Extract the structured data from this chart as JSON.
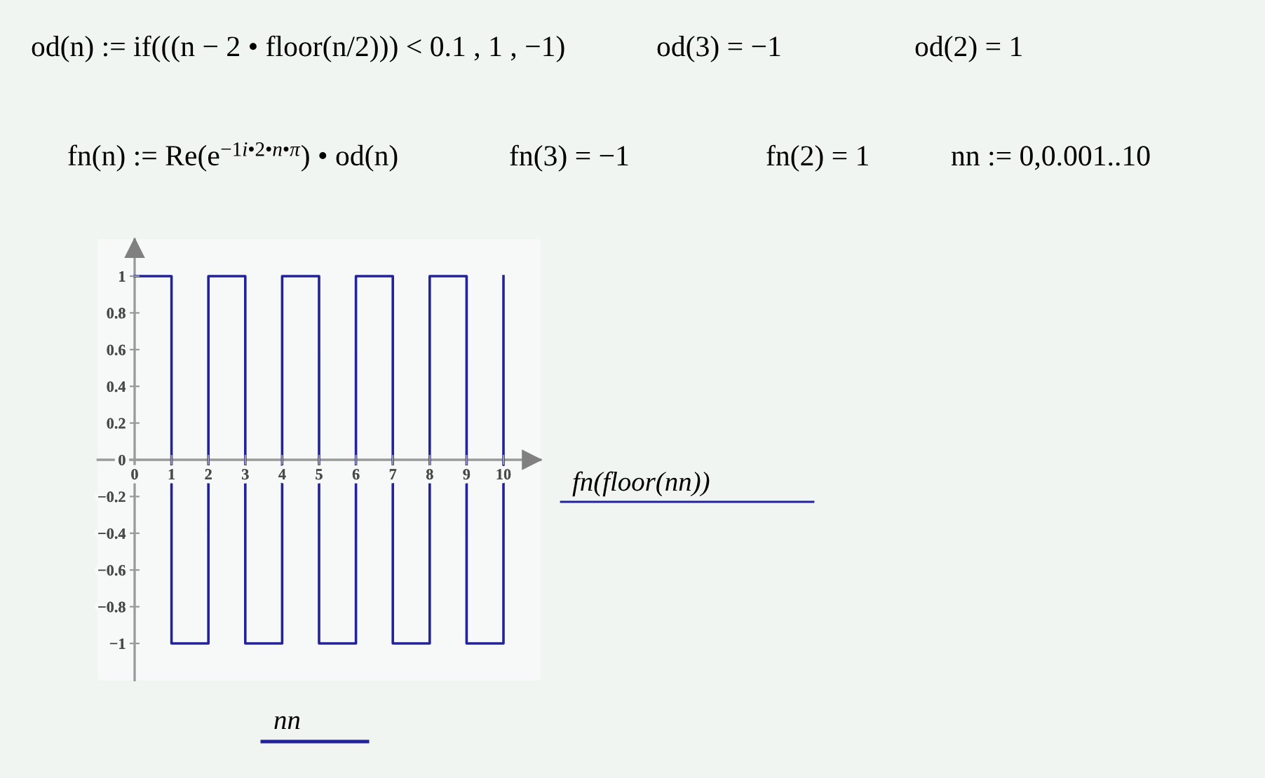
{
  "chart_data": {
    "type": "step",
    "x": [
      0,
      1,
      2,
      3,
      4,
      5,
      6,
      7,
      8,
      9,
      10
    ],
    "series": [
      {
        "color": "#22229a",
        "values": [
          1,
          -1,
          1,
          -1,
          1,
          -1,
          1,
          -1,
          1,
          -1,
          1
        ]
      }
    ],
    "xlim": [
      -1,
      11
    ],
    "ylim": [
      -1.2,
      1.2
    ],
    "xticks": [
      0,
      1,
      2,
      3,
      4,
      5,
      6,
      7,
      8,
      9,
      10
    ],
    "yticks": [
      {
        "value": -1,
        "label": "−1"
      },
      {
        "value": -0.8,
        "label": "−0.8"
      },
      {
        "value": -0.6,
        "label": "−0.6"
      },
      {
        "value": -0.4,
        "label": "−0.4"
      },
      {
        "value": -0.2,
        "label": "−0.2"
      },
      0,
      0.2,
      0.4,
      0.6,
      0.8,
      1
    ],
    "xlabel": "nn",
    "ylabel": "fn(floor(nn))",
    "annotations": [
      "od(n) := if(((n − 2 • floor(n/2))) < 0.1 , 1 , −1)",
      "od(3) = −1",
      "od(2) = 1",
      "fn(n) := Re(e$^{−1i•2•n•π}$) • od(n)",
      "fn(3) = −1",
      "fn(2) = 1",
      "nn := 0,0.001..10"
    ]
  }
}
